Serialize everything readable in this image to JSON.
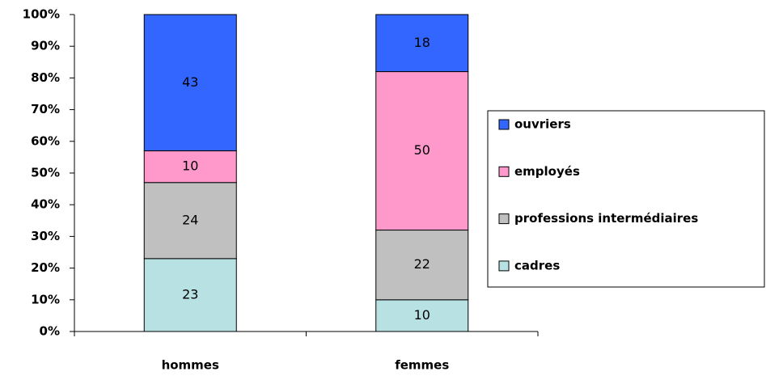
{
  "chart_data": {
    "type": "stacked_bar_percent",
    "categories": [
      "hommes",
      "femmes"
    ],
    "series": [
      {
        "name": "cadres",
        "color": "#b7e1e3",
        "values": [
          23,
          10
        ]
      },
      {
        "name": "professions intermédiaires",
        "color": "#c0c0c0",
        "values": [
          24,
          22
        ]
      },
      {
        "name": "employés",
        "color": "#ff99cc",
        "values": [
          10,
          50
        ]
      },
      {
        "name": "ouvriers",
        "color": "#3366ff",
        "values": [
          43,
          18
        ]
      }
    ],
    "ylim": [
      0,
      100
    ],
    "yticks": [
      {
        "value": 0,
        "label": "0%"
      },
      {
        "value": 10,
        "label": "10%"
      },
      {
        "value": 20,
        "label": "20%"
      },
      {
        "value": 30,
        "label": "30%"
      },
      {
        "value": 40,
        "label": "40%"
      },
      {
        "value": 50,
        "label": "50%"
      },
      {
        "value": 60,
        "label": "60%"
      },
      {
        "value": 70,
        "label": "70%"
      },
      {
        "value": 80,
        "label": "80%"
      },
      {
        "value": 90,
        "label": "90%"
      },
      {
        "value": 100,
        "label": "100%"
      }
    ],
    "legend": "right"
  }
}
